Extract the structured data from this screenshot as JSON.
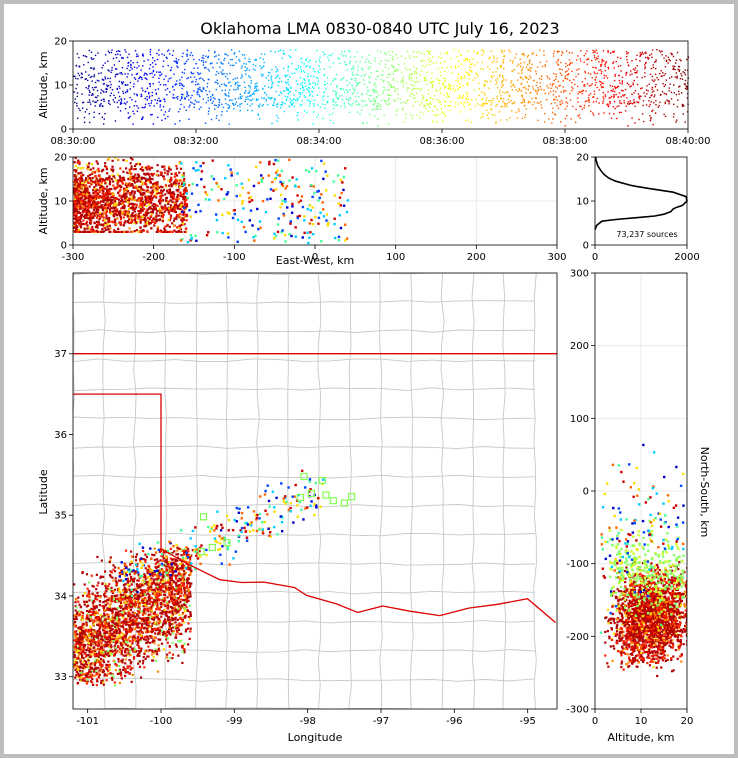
{
  "title": "Oklahoma LMA 0830-0840 UTC July 16, 2023",
  "colors": {
    "outline": "#dd0000",
    "counties": "#c8c8c8",
    "grid": "#e6e6e6",
    "station": "#80ff50"
  },
  "chart_data": [
    {
      "panel": "altitude-vs-time",
      "type": "scatter",
      "ylabel": "Altitude, km",
      "ylim": [
        0,
        20
      ],
      "yticks": [
        "0",
        "10",
        "20"
      ],
      "xticks": [
        "08:30:00",
        "08:32:00",
        "08:34:00",
        "08:36:00",
        "08:38:00",
        "08:40:00"
      ],
      "x_range": [
        "08:30:00",
        "08:40:00"
      ],
      "color_encoding": "time (jet colormap, blue to red)",
      "main_band_km": [
        5,
        18
      ]
    },
    {
      "panel": "altitude-vs-east-west",
      "type": "scatter",
      "xlabel": "East-West, km",
      "ylabel": "Altitude, km",
      "xlim": [
        -300,
        300
      ],
      "ylim": [
        0,
        20
      ],
      "xticks": [
        "-300",
        "-200",
        "-100",
        "0",
        "100",
        "200",
        "300"
      ],
      "yticks": [
        "0",
        "10",
        "20"
      ],
      "grid": true
    },
    {
      "panel": "altitude-histogram",
      "type": "line",
      "xlim": [
        0,
        2000
      ],
      "ylim": [
        0,
        20
      ],
      "xticks": [
        "0",
        "2000"
      ],
      "yticks": [
        "0",
        "10",
        "20"
      ],
      "annotation": "73,237 sources",
      "profile": [
        [
          0,
          3.5
        ],
        [
          40,
          4.5
        ],
        [
          150,
          5.4
        ],
        [
          450,
          5.8
        ],
        [
          900,
          6.2
        ],
        [
          1300,
          6.6
        ],
        [
          1500,
          7.0
        ],
        [
          1650,
          7.6
        ],
        [
          1700,
          8.2
        ],
        [
          1780,
          8.6
        ],
        [
          1900,
          9.0
        ],
        [
          2000,
          10.0
        ],
        [
          1980,
          11.0
        ],
        [
          1700,
          12.0
        ],
        [
          1200,
          12.8
        ],
        [
          800,
          13.5
        ],
        [
          450,
          14.5
        ],
        [
          300,
          15.2
        ],
        [
          200,
          16.0
        ],
        [
          120,
          17.0
        ],
        [
          60,
          18.0
        ],
        [
          30,
          19.0
        ],
        [
          10,
          20.0
        ]
      ]
    },
    {
      "panel": "plan-view-map",
      "type": "scatter",
      "xlabel": "Longitude",
      "ylabel": "Latitude",
      "xlim": [
        -101.2,
        -94.6
      ],
      "ylim": [
        32.6,
        38.0
      ],
      "xticks": [
        "-101",
        "-100",
        "-99",
        "-98",
        "-97",
        "-96",
        "-95"
      ],
      "yticks": [
        "33",
        "34",
        "35",
        "36",
        "37"
      ],
      "stations": [
        [
          -98.05,
          35.48
        ],
        [
          -97.8,
          35.43
        ],
        [
          -98.1,
          35.22
        ],
        [
          -97.95,
          35.27
        ],
        [
          -97.75,
          35.25
        ],
        [
          -97.65,
          35.18
        ],
        [
          -97.5,
          35.15
        ],
        [
          -97.4,
          35.23
        ],
        [
          -99.42,
          34.98
        ],
        [
          -99.1,
          34.66
        ],
        [
          -99.45,
          34.55
        ],
        [
          -99.3,
          34.6
        ]
      ]
    },
    {
      "panel": "north-south-vs-altitude",
      "type": "scatter",
      "xlabel": "Altitude, km",
      "ylabel": "North-South, km",
      "xlim": [
        0,
        20
      ],
      "ylim": [
        -300,
        300
      ],
      "xticks": [
        "0",
        "10",
        "20"
      ],
      "yticks": [
        "-300",
        "-200",
        "-100",
        "0",
        "100",
        "200",
        "300"
      ],
      "grid": true
    }
  ]
}
